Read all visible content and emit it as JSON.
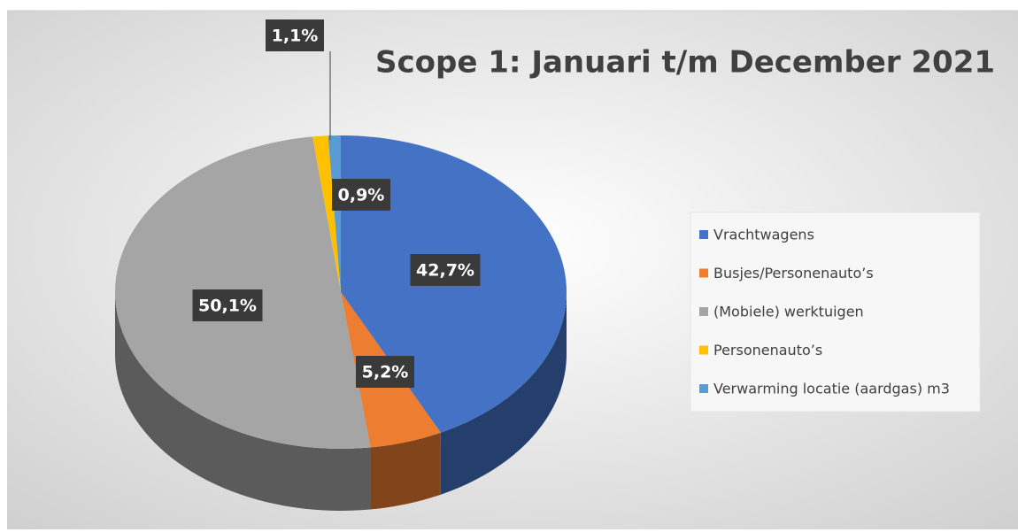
{
  "chart_data": {
    "type": "pie",
    "title": "Scope 1: Januari t/m December 2021",
    "categories": [
      "Vrachtwagens",
      "Busjes/Personenauto’s",
      "(Mobiele) werktuigen",
      "Personenauto’s",
      "Verwarming locatie (aardgas) m3"
    ],
    "values": [
      42.7,
      5.2,
      50.1,
      1.1,
      0.9
    ],
    "value_labels": [
      "42,7%",
      "5,2%",
      "50,1%",
      "1,1%",
      "0,9%"
    ],
    "colors": [
      "#4472c4",
      "#ed7d31",
      "#a5a5a5",
      "#ffc000",
      "#5b9bd5"
    ],
    "legend": "right"
  }
}
